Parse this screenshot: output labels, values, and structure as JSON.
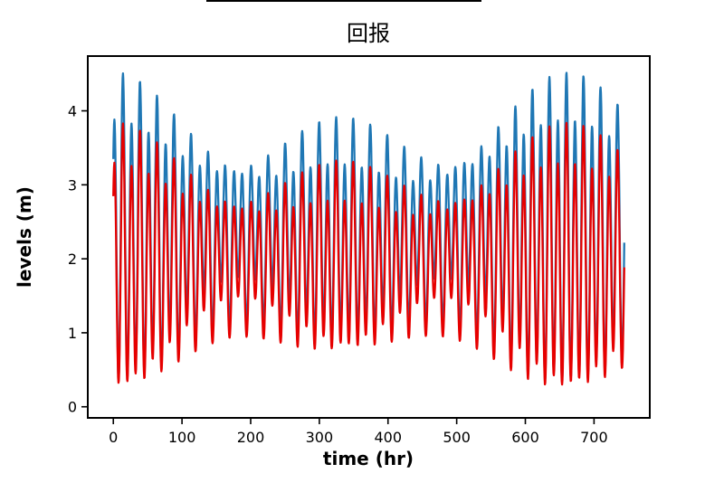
{
  "chart_data": {
    "type": "line",
    "title": "回报",
    "xlabel": "time (hr)",
    "ylabel": "levels (m)",
    "grid": false,
    "legend": null,
    "xlim": [
      -37.2,
      781.2
    ],
    "ylim": [
      -0.15,
      4.74
    ],
    "x_ticks": [
      0,
      100,
      200,
      300,
      400,
      500,
      600,
      700
    ],
    "y_ticks": [
      0,
      1,
      2,
      3,
      4
    ],
    "x_range": [
      0,
      744
    ],
    "sample_step_hr": 0.5,
    "description": "Two in-phase tidal level curves over 744 hours; semidiurnal oscillation (~12.42 hr) with diurnal inequality (~23.93 hr) and spring-neap envelope; peak heights vary ~3.3 to ~4.5 m (blue) and ~3.0 to ~3.9 m (red); troughs reach ~0.1 m near hour 660.",
    "series": [
      {
        "name": "series-blue",
        "color": "#1f77b4",
        "line_width": 2.3,
        "model": {
          "mean": 2.3,
          "t0": 14,
          "m2": {
            "base_amp": 1.25,
            "period": 12.42
          },
          "envelope": [
            {
              "amp": 0.35,
              "period": 330,
              "t_max": 660
            },
            {
              "amp": 0.3,
              "period": 660,
              "t_max": 660
            }
          ],
          "k1": {
            "amp": 0.32,
            "period": 23.93
          },
          "scale": 1.0
        }
      },
      {
        "name": "series-red",
        "color": "#e60000",
        "line_width": 2.3,
        "model": {
          "mean": 2.3,
          "t0": 14,
          "m2": {
            "base_amp": 1.25,
            "period": 12.42
          },
          "envelope": [
            {
              "amp": 0.35,
              "period": 330,
              "t_max": 660
            },
            {
              "amp": 0.3,
              "period": 660,
              "t_max": 660
            }
          ],
          "k1": {
            "amp": 0.32,
            "period": 23.93
          },
          "scale": 0.85
        }
      }
    ]
  }
}
